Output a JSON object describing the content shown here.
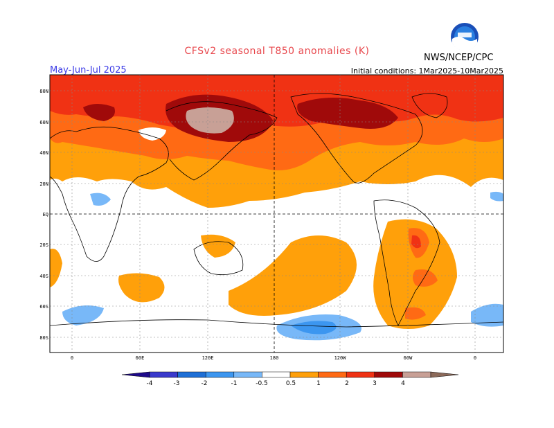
{
  "header": {
    "title": "CFSv2 seasonal T850 anomalies (K)",
    "season": "May-Jun-Jul 2025",
    "initial_conditions": "Initial conditions: 1Mar2025-10Mar2025",
    "agency": "NWS/NCEP/CPC",
    "logo_icon": "noaa-logo-icon"
  },
  "map": {
    "lat_labels": [
      "80N",
      "60N",
      "40N",
      "20N",
      "EQ",
      "20S",
      "40S",
      "60S",
      "80S"
    ],
    "lon_labels": [
      "0",
      "60E",
      "120E",
      "180",
      "120W",
      "60W",
      "0"
    ]
  },
  "colorbar": {
    "ticks": [
      "-4",
      "-3",
      "-2",
      "-1",
      "-0.5",
      "0.5",
      "1",
      "2",
      "3",
      "4"
    ],
    "colors": [
      "#1e0a8a",
      "#3a3acc",
      "#1e6fd6",
      "#3c96f0",
      "#78b8f8",
      "#ffffff",
      "#ffa00a",
      "#ff6a14",
      "#f03214",
      "#a00a0a",
      "#c8a096",
      "#8c6a5a"
    ]
  }
}
